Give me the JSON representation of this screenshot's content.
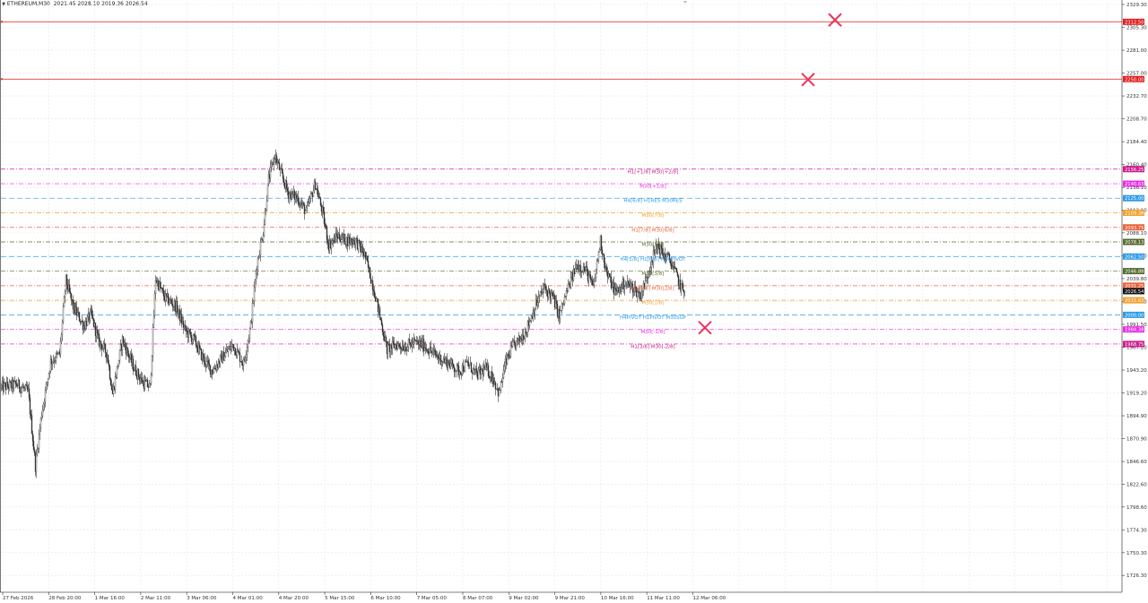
{
  "header": {
    "symbol": "ETHEREUM,M30",
    "ohlc": "2021.45 2028.10 2019.36 2026.54"
  },
  "colors": {
    "background": "#ffffff",
    "grid": "#e6e6e6",
    "candle": "#333333",
    "axis_text": "#333333",
    "cross_marker": "#e8365d"
  },
  "chart_data": {
    "type": "candlestick",
    "title": "",
    "xlabel": "",
    "ylabel": "",
    "ylim": [
      1708.5,
      2331.2
    ],
    "y_ticks": [
      "2329.30",
      "2305.30",
      "2281.00",
      "2257.00",
      "2232.70",
      "2208.70",
      "2184.40",
      "2160.40",
      "2136.10",
      "2112.10",
      "2088.10",
      "2063.80",
      "2039.80",
      "2015.60",
      "1991.50",
      "1967.20",
      "1943.20",
      "1919.20",
      "1894.90",
      "1870.90",
      "1846.60",
      "1822.60",
      "1798.60",
      "1774.30",
      "1750.30",
      "1726.30"
    ],
    "x_ticks": [
      "27 Feb 2026",
      "28 Feb 20:00",
      "1 Mar 16:00",
      "2 Mar 11:00",
      "3 Mar 06:00",
      "4 Mar 01:00",
      "4 Mar 20:00",
      "5 Mar 15:00",
      "6 Mar 10:00",
      "7 Mar 05:00",
      "8 Mar 07:00",
      "9 Mar 02:00",
      "9 Mar 21:00",
      "10 Mar 16:00",
      "11 Mar 11:00",
      "12 Mar 06:00"
    ],
    "bar_count": 760,
    "price_path": [
      [
        0,
        1925
      ],
      [
        18,
        1928
      ],
      [
        30,
        1920
      ],
      [
        38,
        1842
      ],
      [
        45,
        1898
      ],
      [
        55,
        1952
      ],
      [
        65,
        1960
      ],
      [
        72,
        2038
      ],
      [
        80,
        2010
      ],
      [
        92,
        1990
      ],
      [
        100,
        2002
      ],
      [
        108,
        1975
      ],
      [
        118,
        1960
      ],
      [
        124,
        1918
      ],
      [
        135,
        1975
      ],
      [
        148,
        1945
      ],
      [
        158,
        1930
      ],
      [
        166,
        1925
      ],
      [
        172,
        2040
      ],
      [
        182,
        2020
      ],
      [
        195,
        2010
      ],
      [
        205,
        1985
      ],
      [
        215,
        1975
      ],
      [
        225,
        1955
      ],
      [
        235,
        1942
      ],
      [
        245,
        1955
      ],
      [
        258,
        1970
      ],
      [
        270,
        1950
      ],
      [
        278,
        1990
      ],
      [
        285,
        2055
      ],
      [
        292,
        2090
      ],
      [
        298,
        2145
      ],
      [
        305,
        2170
      ],
      [
        312,
        2150
      ],
      [
        320,
        2130
      ],
      [
        330,
        2125
      ],
      [
        340,
        2110
      ],
      [
        350,
        2140
      ],
      [
        358,
        2110
      ],
      [
        365,
        2075
      ],
      [
        375,
        2085
      ],
      [
        385,
        2080
      ],
      [
        395,
        2080
      ],
      [
        405,
        2065
      ],
      [
        415,
        2030
      ],
      [
        422,
        2000
      ],
      [
        430,
        1965
      ],
      [
        440,
        1970
      ],
      [
        450,
        1968
      ],
      [
        460,
        1972
      ],
      [
        470,
        1970
      ],
      [
        480,
        1962
      ],
      [
        490,
        1955
      ],
      [
        500,
        1950
      ],
      [
        510,
        1942
      ],
      [
        520,
        1950
      ],
      [
        530,
        1938
      ],
      [
        540,
        1945
      ],
      [
        548,
        1935
      ],
      [
        555,
        1918
      ],
      [
        562,
        1950
      ],
      [
        570,
        1968
      ],
      [
        578,
        1975
      ],
      [
        585,
        1985
      ],
      [
        595,
        2010
      ],
      [
        605,
        2030
      ],
      [
        615,
        2020
      ],
      [
        622,
        2000
      ],
      [
        632,
        2030
      ],
      [
        642,
        2055
      ],
      [
        652,
        2048
      ],
      [
        660,
        2030
      ],
      [
        668,
        2080
      ],
      [
        675,
        2045
      ],
      [
        685,
        2025
      ],
      [
        695,
        2035
      ],
      [
        705,
        2030
      ],
      [
        712,
        2022
      ],
      [
        718,
        2035
      ],
      [
        725,
        2060
      ],
      [
        732,
        2075
      ],
      [
        738,
        2065
      ],
      [
        745,
        2060
      ],
      [
        752,
        2045
      ],
      [
        758,
        2030
      ],
      [
        762,
        2026
      ]
    ],
    "last_price": 2026.54,
    "levels": [
      {
        "price": 2311.0,
        "tag": "2312.50",
        "color": "#e23a3a",
        "style": "solid",
        "name": "",
        "tagbg": "#e21f1f"
      },
      {
        "price": 2250.5,
        "tag": "2250.00",
        "color": "#e23a3a",
        "style": "solid",
        "name": "",
        "tagbg": "#e21f1f"
      },
      {
        "price": 2155.4,
        "tag": "2156.25",
        "color": "#cc1c8c",
        "style": "dash-dot",
        "name": "H1[+1/8] M30[+2/8]",
        "tagbg": "#cc1c8c"
      },
      {
        "price": 2140.0,
        "tag": "2140.63",
        "color": "#e62ee6",
        "style": "dash-dot",
        "name": "M30[+1/8]",
        "tagbg": "#e62ee6"
      },
      {
        "price": 2124.7,
        "tag": "2125.00",
        "color": "#2e9ae6",
        "style": "dashed",
        "name": "H4[6/8] H1RES M30RES",
        "tagbg": "#2e9ae6"
      },
      {
        "price": 2109.3,
        "tag": "2109.38",
        "color": "#f0a030",
        "style": "dash-dot",
        "name": "M30[7/8]",
        "tagbg": "#f0a030"
      },
      {
        "price": 2093.9,
        "tag": "2093.75",
        "color": "#e8643c",
        "style": "dash-dot",
        "name": "H1[7/8] M30[6/8]",
        "tagbg": "#e8643c"
      },
      {
        "price": 2078.5,
        "tag": "2078.13",
        "color": "#556b2f",
        "style": "dash-dot",
        "name": "M30[5/8]",
        "tagbg": "#556b2f"
      },
      {
        "price": 2063.1,
        "tag": "2062.50",
        "color": "#2e9ae6",
        "style": "dashed",
        "name": "H4[5/8] H1[6/8] M30PIVOT",
        "tagbg": "#2e9ae6"
      },
      {
        "price": 2047.7,
        "tag": "2046.88",
        "color": "#556b2f",
        "style": "dash-dot",
        "name": "M30[3/8]",
        "tagbg": "#556b2f"
      },
      {
        "price": 2032.3,
        "tag": "2031.25",
        "color": "#e8643c",
        "style": "dash-dot",
        "name": "H1[5/8] M30[2/8]",
        "tagbg": "#e8643c"
      },
      {
        "price": 2016.9,
        "tag": "2015.63",
        "color": "#f0a030",
        "style": "dash-dot",
        "name": "M30[1/8]",
        "tagbg": "#f0a030"
      },
      {
        "price": 2001.5,
        "tag": "2000.00",
        "color": "#2e9ae6",
        "style": "dashed",
        "name": "H4PIVOT H1PIVOT M30SUP",
        "tagbg": "#2e9ae6"
      },
      {
        "price": 1986.1,
        "tag": "1984.38",
        "color": "#e62ee6",
        "style": "dash-dot",
        "name": "M30[-1/8]",
        "tagbg": "#e62ee6"
      },
      {
        "price": 1970.7,
        "tag": "1968.75",
        "color": "#cc1c8c",
        "style": "dash-dot",
        "name": "H1[3/8] M30[-2/8]",
        "tagbg": "#cc1c8c"
      }
    ],
    "cross_markers": [
      {
        "bar": 930,
        "price": 2313
      },
      {
        "bar": 900,
        "price": 2250
      },
      {
        "bar": 785,
        "price": 1988
      }
    ],
    "grid": true
  }
}
